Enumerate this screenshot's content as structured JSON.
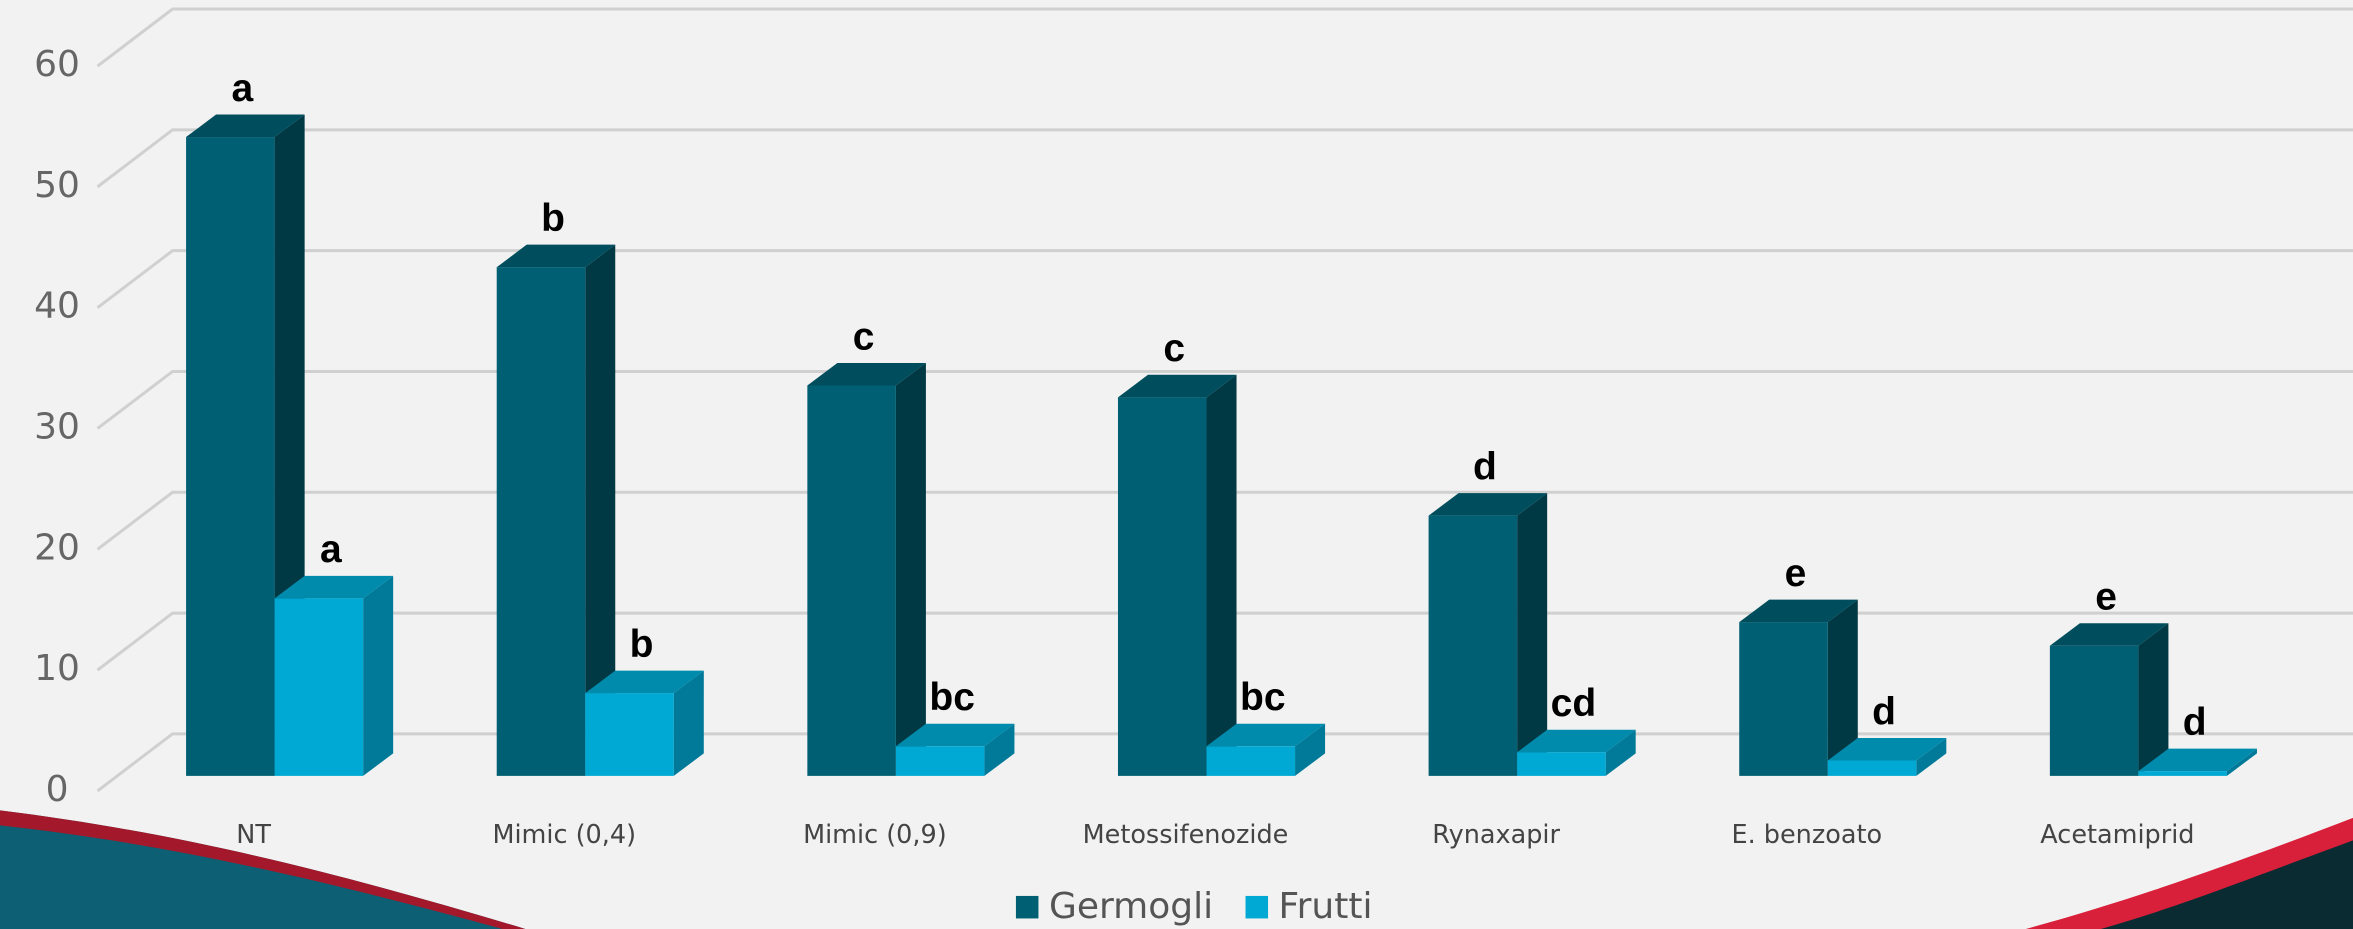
{
  "chart_data": {
    "type": "bar3d",
    "categories": [
      "NT",
      "Mimic (0,4)",
      "Mimic (0,9)",
      "Metossifenozide",
      "Rynaxapir",
      "E. benzoato",
      "Acetamiprid"
    ],
    "series": [
      {
        "name": "Germogli",
        "color": "#005f72",
        "values": [
          54,
          43,
          33,
          32,
          22,
          13,
          11
        ],
        "letters": [
          "a",
          "b",
          "c",
          "c",
          "d",
          "e",
          "e"
        ]
      },
      {
        "name": "Frutti",
        "color": "#00a9d3",
        "values": [
          15,
          7,
          2.5,
          2.5,
          2,
          1.3,
          0.4
        ],
        "letters": [
          "a",
          "b",
          "bc",
          "bc",
          "cd",
          "d",
          "d"
        ]
      }
    ],
    "ylim": [
      0,
      60
    ],
    "yticks": [
      0,
      10,
      20,
      30,
      40,
      50,
      60
    ],
    "grid": true,
    "legend": "bottom"
  }
}
